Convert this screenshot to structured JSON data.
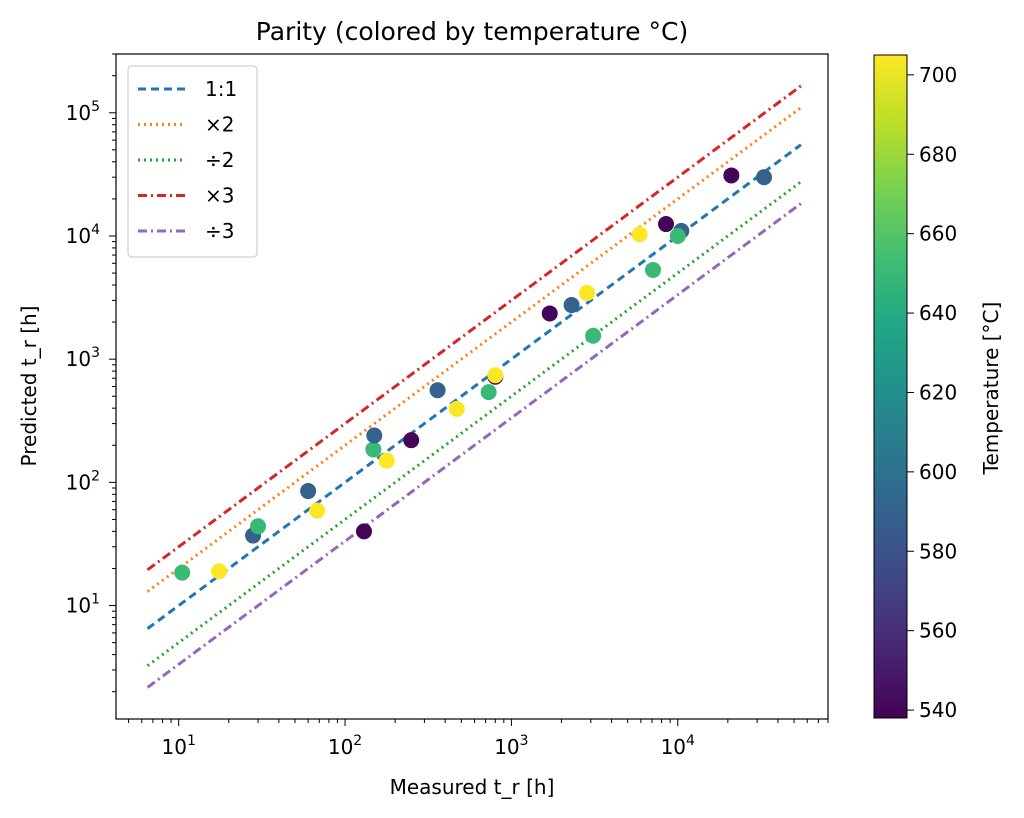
{
  "chart_data": {
    "type": "scatter",
    "title": "Parity (colored by temperature °C)",
    "xlabel": "Measured t_r [h]",
    "ylabel": "Predicted t_r [h]",
    "xscale": "log",
    "yscale": "log",
    "xlim": [
      4.2,
      80000
    ],
    "ylim": [
      1.2,
      300000
    ],
    "grid": false,
    "legend_placement": "top-left",
    "x_ticks": [
      {
        "value": 10,
        "base": "10",
        "exp": "1"
      },
      {
        "value": 100,
        "base": "10",
        "exp": "2"
      },
      {
        "value": 1000,
        "base": "10",
        "exp": "3"
      },
      {
        "value": 10000,
        "base": "10",
        "exp": "4"
      }
    ],
    "y_ticks": [
      {
        "value": 10,
        "base": "10",
        "exp": "1"
      },
      {
        "value": 100,
        "base": "10",
        "exp": "2"
      },
      {
        "value": 1000,
        "base": "10",
        "exp": "3"
      },
      {
        "value": 10000,
        "base": "10",
        "exp": "4"
      },
      {
        "value": 100000,
        "base": "10",
        "exp": "5"
      }
    ],
    "reference_lines": [
      {
        "name": "1:1",
        "factor": 1,
        "color": "#1f77b4",
        "dash": "8,5"
      },
      {
        "name": "×2",
        "factor": 2,
        "color": "#ff7f0e",
        "dash": "2,4"
      },
      {
        "name": "÷2",
        "factor": 0.5,
        "color": "#2ca02c",
        "dash": "2,4"
      },
      {
        "name": "×3",
        "factor": 3,
        "color": "#d62728",
        "dash": "9,4,2,4"
      },
      {
        "name": "÷3",
        "factor": 0.3333,
        "color": "#9467bd",
        "dash": "9,4,2,4"
      }
    ],
    "reference_line_range": [
      6.5,
      55000
    ],
    "points": [
      {
        "x": 10.5,
        "y": 18.5,
        "temp": 650
      },
      {
        "x": 17.5,
        "y": 19,
        "temp": 705
      },
      {
        "x": 28,
        "y": 37,
        "temp": 590
      },
      {
        "x": 30,
        "y": 44,
        "temp": 650
      },
      {
        "x": 60,
        "y": 85,
        "temp": 590
      },
      {
        "x": 68,
        "y": 59,
        "temp": 705
      },
      {
        "x": 130,
        "y": 40,
        "temp": 540
      },
      {
        "x": 148,
        "y": 185,
        "temp": 650
      },
      {
        "x": 150,
        "y": 240,
        "temp": 590
      },
      {
        "x": 178,
        "y": 150,
        "temp": 705
      },
      {
        "x": 250,
        "y": 220,
        "temp": 540
      },
      {
        "x": 360,
        "y": 560,
        "temp": 590
      },
      {
        "x": 470,
        "y": 395,
        "temp": 705
      },
      {
        "x": 730,
        "y": 540,
        "temp": 650
      },
      {
        "x": 800,
        "y": 720,
        "temp": 540
      },
      {
        "x": 800,
        "y": 740,
        "temp": 705
      },
      {
        "x": 1700,
        "y": 2350,
        "temp": 540
      },
      {
        "x": 2300,
        "y": 2750,
        "temp": 590
      },
      {
        "x": 2850,
        "y": 3450,
        "temp": 705
      },
      {
        "x": 3100,
        "y": 1550,
        "temp": 650
      },
      {
        "x": 5900,
        "y": 10300,
        "temp": 705
      },
      {
        "x": 7100,
        "y": 5300,
        "temp": 650
      },
      {
        "x": 8500,
        "y": 12500,
        "temp": 540
      },
      {
        "x": 10500,
        "y": 11000,
        "temp": 590
      },
      {
        "x": 10000,
        "y": 10000,
        "temp": 650
      },
      {
        "x": 21000,
        "y": 31000,
        "temp": 540
      },
      {
        "x": 33000,
        "y": 30000,
        "temp": 590
      }
    ],
    "colorbar": {
      "label": "Temperature [°C]",
      "min": 538,
      "max": 705,
      "colormap": "viridis",
      "ticks": [
        "540",
        "560",
        "580",
        "600",
        "620",
        "640",
        "660",
        "680",
        "700"
      ]
    }
  }
}
